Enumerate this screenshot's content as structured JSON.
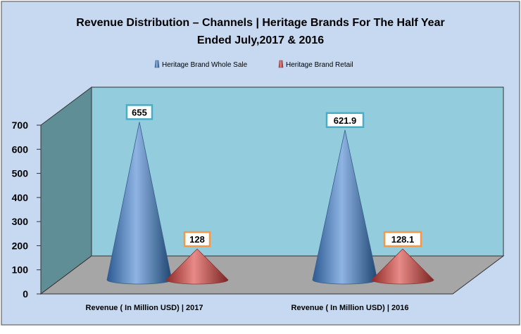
{
  "chart_data": {
    "type": "bar",
    "subtype": "3d-cone",
    "title_lines": [
      "Revenue Distribution  – Channels  | Heritage Brands For The Half Year",
      "Ended July,2017 & 2016"
    ],
    "categories": [
      "Revenue ( In Million USD) | 2017",
      "Revenue ( In Million USD) | 2016"
    ],
    "series": [
      {
        "name": "Heritage Brand  Whole Sale",
        "values": [
          655,
          621.9
        ],
        "labels": [
          "655",
          "621.9"
        ],
        "color": "#4f81bd",
        "label_border": "#4bacc6"
      },
      {
        "name": "Heritage Brand  Retail",
        "values": [
          128,
          128.1
        ],
        "labels": [
          "128",
          "128.1"
        ],
        "color": "#c0504d",
        "label_border": "#f79646"
      }
    ],
    "yticks": [
      "0",
      "100",
      "200",
      "300",
      "400",
      "500",
      "600",
      "700"
    ],
    "ylim": [
      0,
      700
    ],
    "legend": "top",
    "grid": false,
    "colors": {
      "background": "#c6d9f1",
      "back_wall": "#93cddd",
      "side_wall": "#5f8e96",
      "floor": "#a6a6a6"
    }
  }
}
